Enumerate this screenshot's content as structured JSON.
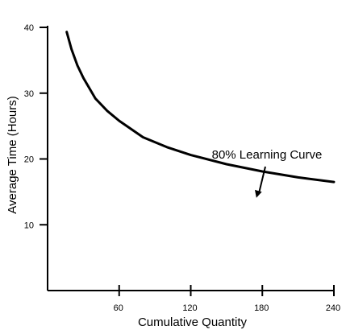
{
  "chart_data": {
    "type": "line",
    "title": "",
    "xlabel": "Cumulative Quantity",
    "ylabel": "Average Time (Hours)",
    "xlim": [
      0,
      240
    ],
    "ylim": [
      0,
      40
    ],
    "x_ticks": [
      60,
      120,
      180,
      240
    ],
    "y_ticks": [
      10,
      20,
      30,
      40
    ],
    "grid": false,
    "series": [
      {
        "learning_rate": 0.8,
        "x": [
          16,
          20,
          25,
          30,
          40,
          50,
          60,
          80,
          100,
          120,
          150,
          180,
          210,
          240
        ],
        "y": [
          39.3,
          36.7,
          34.2,
          32.3,
          29.2,
          27.3,
          25.8,
          23.3,
          21.8,
          20.6,
          19.2,
          18.1,
          17.2,
          16.5
        ]
      }
    ],
    "annotations": [
      {
        "text": "80% Learning Curve",
        "arrow_to": {
          "x": 175,
          "y": 14.1
        }
      }
    ],
    "line_color": "#000000"
  }
}
